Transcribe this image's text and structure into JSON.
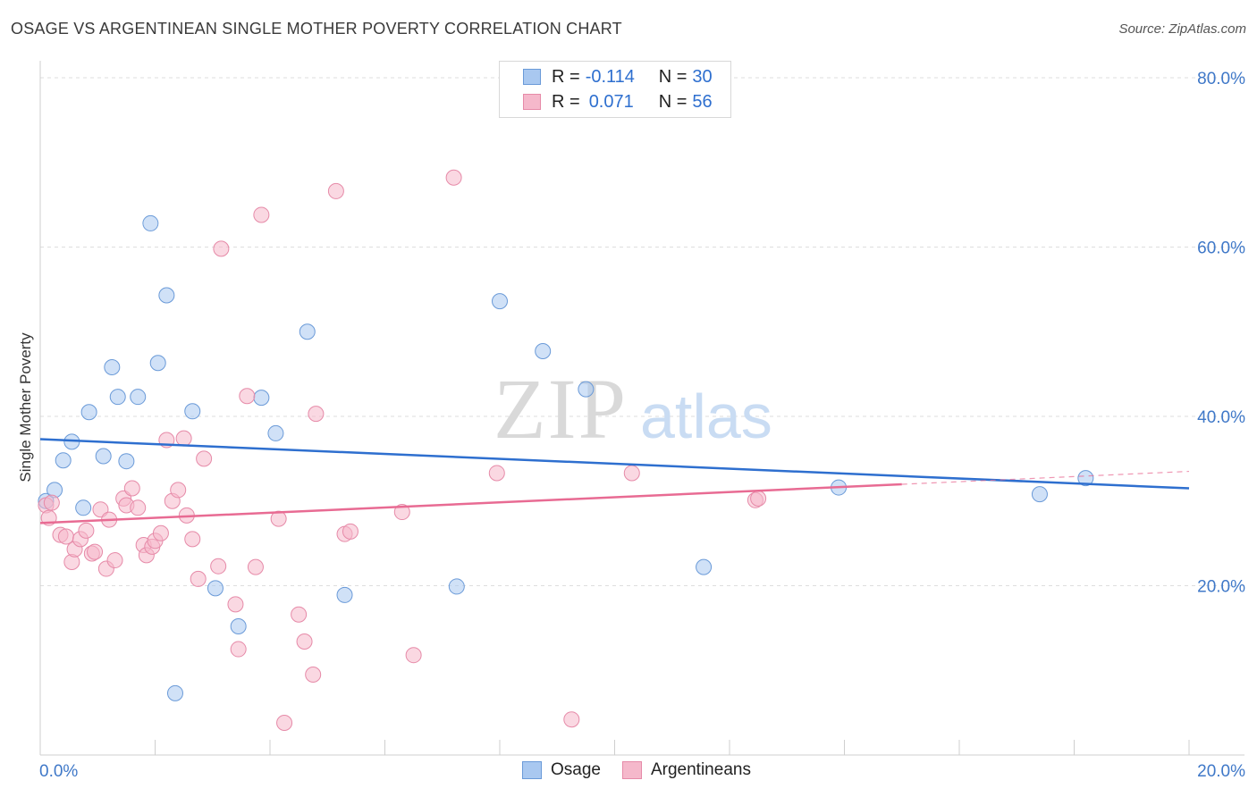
{
  "title": "OSAGE VS ARGENTINEAN SINGLE MOTHER POVERTY CORRELATION CHART",
  "source": "Source: ZipAtlas.com",
  "watermark": {
    "zip": "ZIP",
    "atlas": "atlas"
  },
  "legend": {
    "rows": [
      {
        "r_label": "R =",
        "r_value": "-0.114",
        "n_label": "N =",
        "n_value": "30",
        "color": "#a9c8f0"
      },
      {
        "r_label": "R =",
        "r_value": "0.071",
        "n_label": "N =",
        "n_value": "56",
        "color": "#f5b8cb"
      }
    ],
    "bottom": [
      {
        "name": "Osage",
        "color": "#a9c8f0"
      },
      {
        "name": "Argentineans",
        "color": "#f5b8cb"
      }
    ]
  },
  "chart_data": {
    "type": "scatter",
    "ylabel": "Single Mother Poverty",
    "xlim": [
      0,
      20
    ],
    "ylim": [
      0,
      82
    ],
    "x_tick_labels": [
      {
        "value": 0,
        "label": "0.0%"
      },
      {
        "value": 20,
        "label": "20.0%"
      }
    ],
    "y_tick_labels": [
      {
        "value": 20,
        "label": "20.0%"
      },
      {
        "value": 40,
        "label": "40.0%"
      },
      {
        "value": 60,
        "label": "60.0%"
      },
      {
        "value": 80,
        "label": "80.0%"
      }
    ],
    "series": [
      {
        "name": "Osage",
        "color": "#a9c8f0",
        "stroke": "#6a9ad8",
        "line_color": "#2e6fcf",
        "trend": {
          "x0": 0,
          "y0": 37.3,
          "x1": 20,
          "y1": 31.5,
          "solid_to": 20
        },
        "points": [
          [
            0.1,
            30.0
          ],
          [
            0.25,
            31.3
          ],
          [
            0.4,
            34.8
          ],
          [
            0.55,
            37.0
          ],
          [
            0.75,
            29.2
          ],
          [
            0.85,
            40.5
          ],
          [
            1.1,
            35.3
          ],
          [
            1.25,
            45.8
          ],
          [
            1.35,
            42.3
          ],
          [
            1.5,
            34.7
          ],
          [
            1.7,
            42.3
          ],
          [
            1.92,
            62.8
          ],
          [
            2.05,
            46.3
          ],
          [
            2.2,
            54.3
          ],
          [
            2.35,
            7.3
          ],
          [
            2.65,
            40.6
          ],
          [
            3.05,
            19.7
          ],
          [
            3.45,
            15.2
          ],
          [
            3.85,
            42.2
          ],
          [
            4.1,
            38.0
          ],
          [
            4.65,
            50.0
          ],
          [
            5.3,
            18.9
          ],
          [
            7.25,
            19.9
          ],
          [
            8.0,
            53.6
          ],
          [
            8.75,
            47.7
          ],
          [
            9.5,
            43.2
          ],
          [
            11.55,
            22.2
          ],
          [
            13.9,
            31.6
          ],
          [
            17.4,
            30.8
          ],
          [
            18.2,
            32.7
          ]
        ]
      },
      {
        "name": "Argentineans",
        "color": "#f5b8cb",
        "stroke": "#e68aa8",
        "line_color": "#e86b93",
        "trend": {
          "x0": 0,
          "y0": 27.4,
          "x1": 20,
          "y1": 33.5,
          "solid_to": 15
        },
        "points": [
          [
            0.1,
            29.5
          ],
          [
            0.15,
            28.0
          ],
          [
            0.2,
            29.8
          ],
          [
            0.35,
            26.0
          ],
          [
            0.45,
            25.8
          ],
          [
            0.55,
            22.8
          ],
          [
            0.6,
            24.3
          ],
          [
            0.7,
            25.5
          ],
          [
            0.8,
            26.5
          ],
          [
            0.9,
            23.8
          ],
          [
            0.95,
            24.0
          ],
          [
            1.05,
            29.0
          ],
          [
            1.15,
            22.0
          ],
          [
            1.2,
            27.8
          ],
          [
            1.3,
            23.0
          ],
          [
            1.45,
            30.3
          ],
          [
            1.5,
            29.5
          ],
          [
            1.6,
            31.5
          ],
          [
            1.7,
            29.2
          ],
          [
            1.8,
            24.8
          ],
          [
            1.85,
            23.6
          ],
          [
            1.95,
            24.6
          ],
          [
            2.0,
            25.3
          ],
          [
            2.1,
            26.2
          ],
          [
            2.2,
            37.2
          ],
          [
            2.3,
            30.0
          ],
          [
            2.4,
            31.3
          ],
          [
            2.5,
            37.4
          ],
          [
            2.55,
            28.3
          ],
          [
            2.65,
            25.5
          ],
          [
            2.75,
            20.8
          ],
          [
            2.85,
            35.0
          ],
          [
            3.1,
            22.3
          ],
          [
            3.15,
            59.8
          ],
          [
            3.4,
            17.8
          ],
          [
            3.45,
            12.5
          ],
          [
            3.6,
            42.4
          ],
          [
            3.75,
            22.2
          ],
          [
            3.85,
            63.8
          ],
          [
            4.15,
            27.9
          ],
          [
            4.25,
            3.8
          ],
          [
            4.5,
            16.6
          ],
          [
            4.6,
            13.4
          ],
          [
            4.75,
            9.5
          ],
          [
            4.8,
            40.3
          ],
          [
            5.15,
            66.6
          ],
          [
            5.3,
            26.1
          ],
          [
            5.4,
            26.4
          ],
          [
            6.3,
            28.7
          ],
          [
            6.5,
            11.8
          ],
          [
            7.2,
            68.2
          ],
          [
            7.95,
            33.3
          ],
          [
            9.25,
            4.2
          ],
          [
            10.3,
            33.3
          ],
          [
            12.45,
            30.1
          ],
          [
            12.5,
            30.3
          ]
        ]
      }
    ]
  }
}
